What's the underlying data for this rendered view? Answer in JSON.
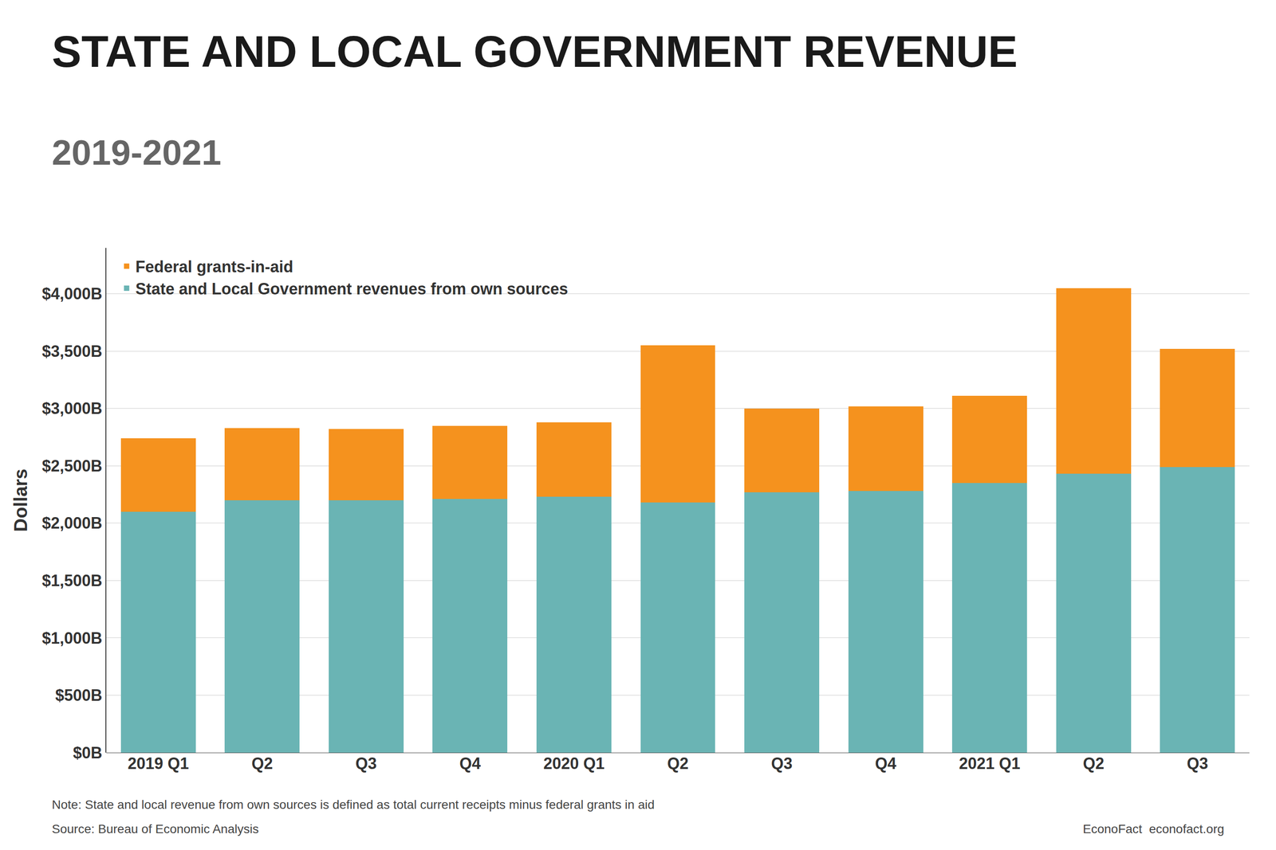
{
  "chart_data": {
    "type": "bar",
    "stacked": true,
    "title": "STATE AND LOCAL GOVERNMENT REVENUE",
    "subtitle": "2019-2021",
    "ylabel": "Dollars",
    "categories": [
      "2019 Q1",
      "Q2",
      "Q3",
      "Q4",
      "2020 Q1",
      "Q2",
      "Q3",
      "Q4",
      "2021 Q1",
      "Q2",
      "Q3"
    ],
    "series": [
      {
        "name": "State and Local Government revenues from own sources",
        "color": "#6ab4b4",
        "values": [
          2100,
          2200,
          2200,
          2210,
          2230,
          2180,
          2270,
          2280,
          2350,
          2430,
          2490
        ]
      },
      {
        "name": "Federal grants-in-aid",
        "color": "#f5921e",
        "values": [
          640,
          630,
          620,
          640,
          650,
          1370,
          730,
          740,
          760,
          1620,
          1030
        ]
      }
    ],
    "ylim": [
      0,
      4400
    ],
    "yticks": [
      {
        "value": 0,
        "label": "$0B"
      },
      {
        "value": 500,
        "label": "$500B"
      },
      {
        "value": 1000,
        "label": "$1,000B"
      },
      {
        "value": 1500,
        "label": "$1,500B"
      },
      {
        "value": 2000,
        "label": "$2,000B"
      },
      {
        "value": 2500,
        "label": "$2,500B"
      },
      {
        "value": 3000,
        "label": "$3,000B"
      },
      {
        "value": 3500,
        "label": "$3,500B"
      },
      {
        "value": 4000,
        "label": "$4,000B"
      }
    ],
    "grid": true,
    "legend": "upper left",
    "annotations": [
      "Note: State and local revenue from own sources is defined as total current receipts minus federal grants in aid",
      "Source: Bureau of Economic Analysis",
      "EconoFact  econofact.org"
    ]
  }
}
